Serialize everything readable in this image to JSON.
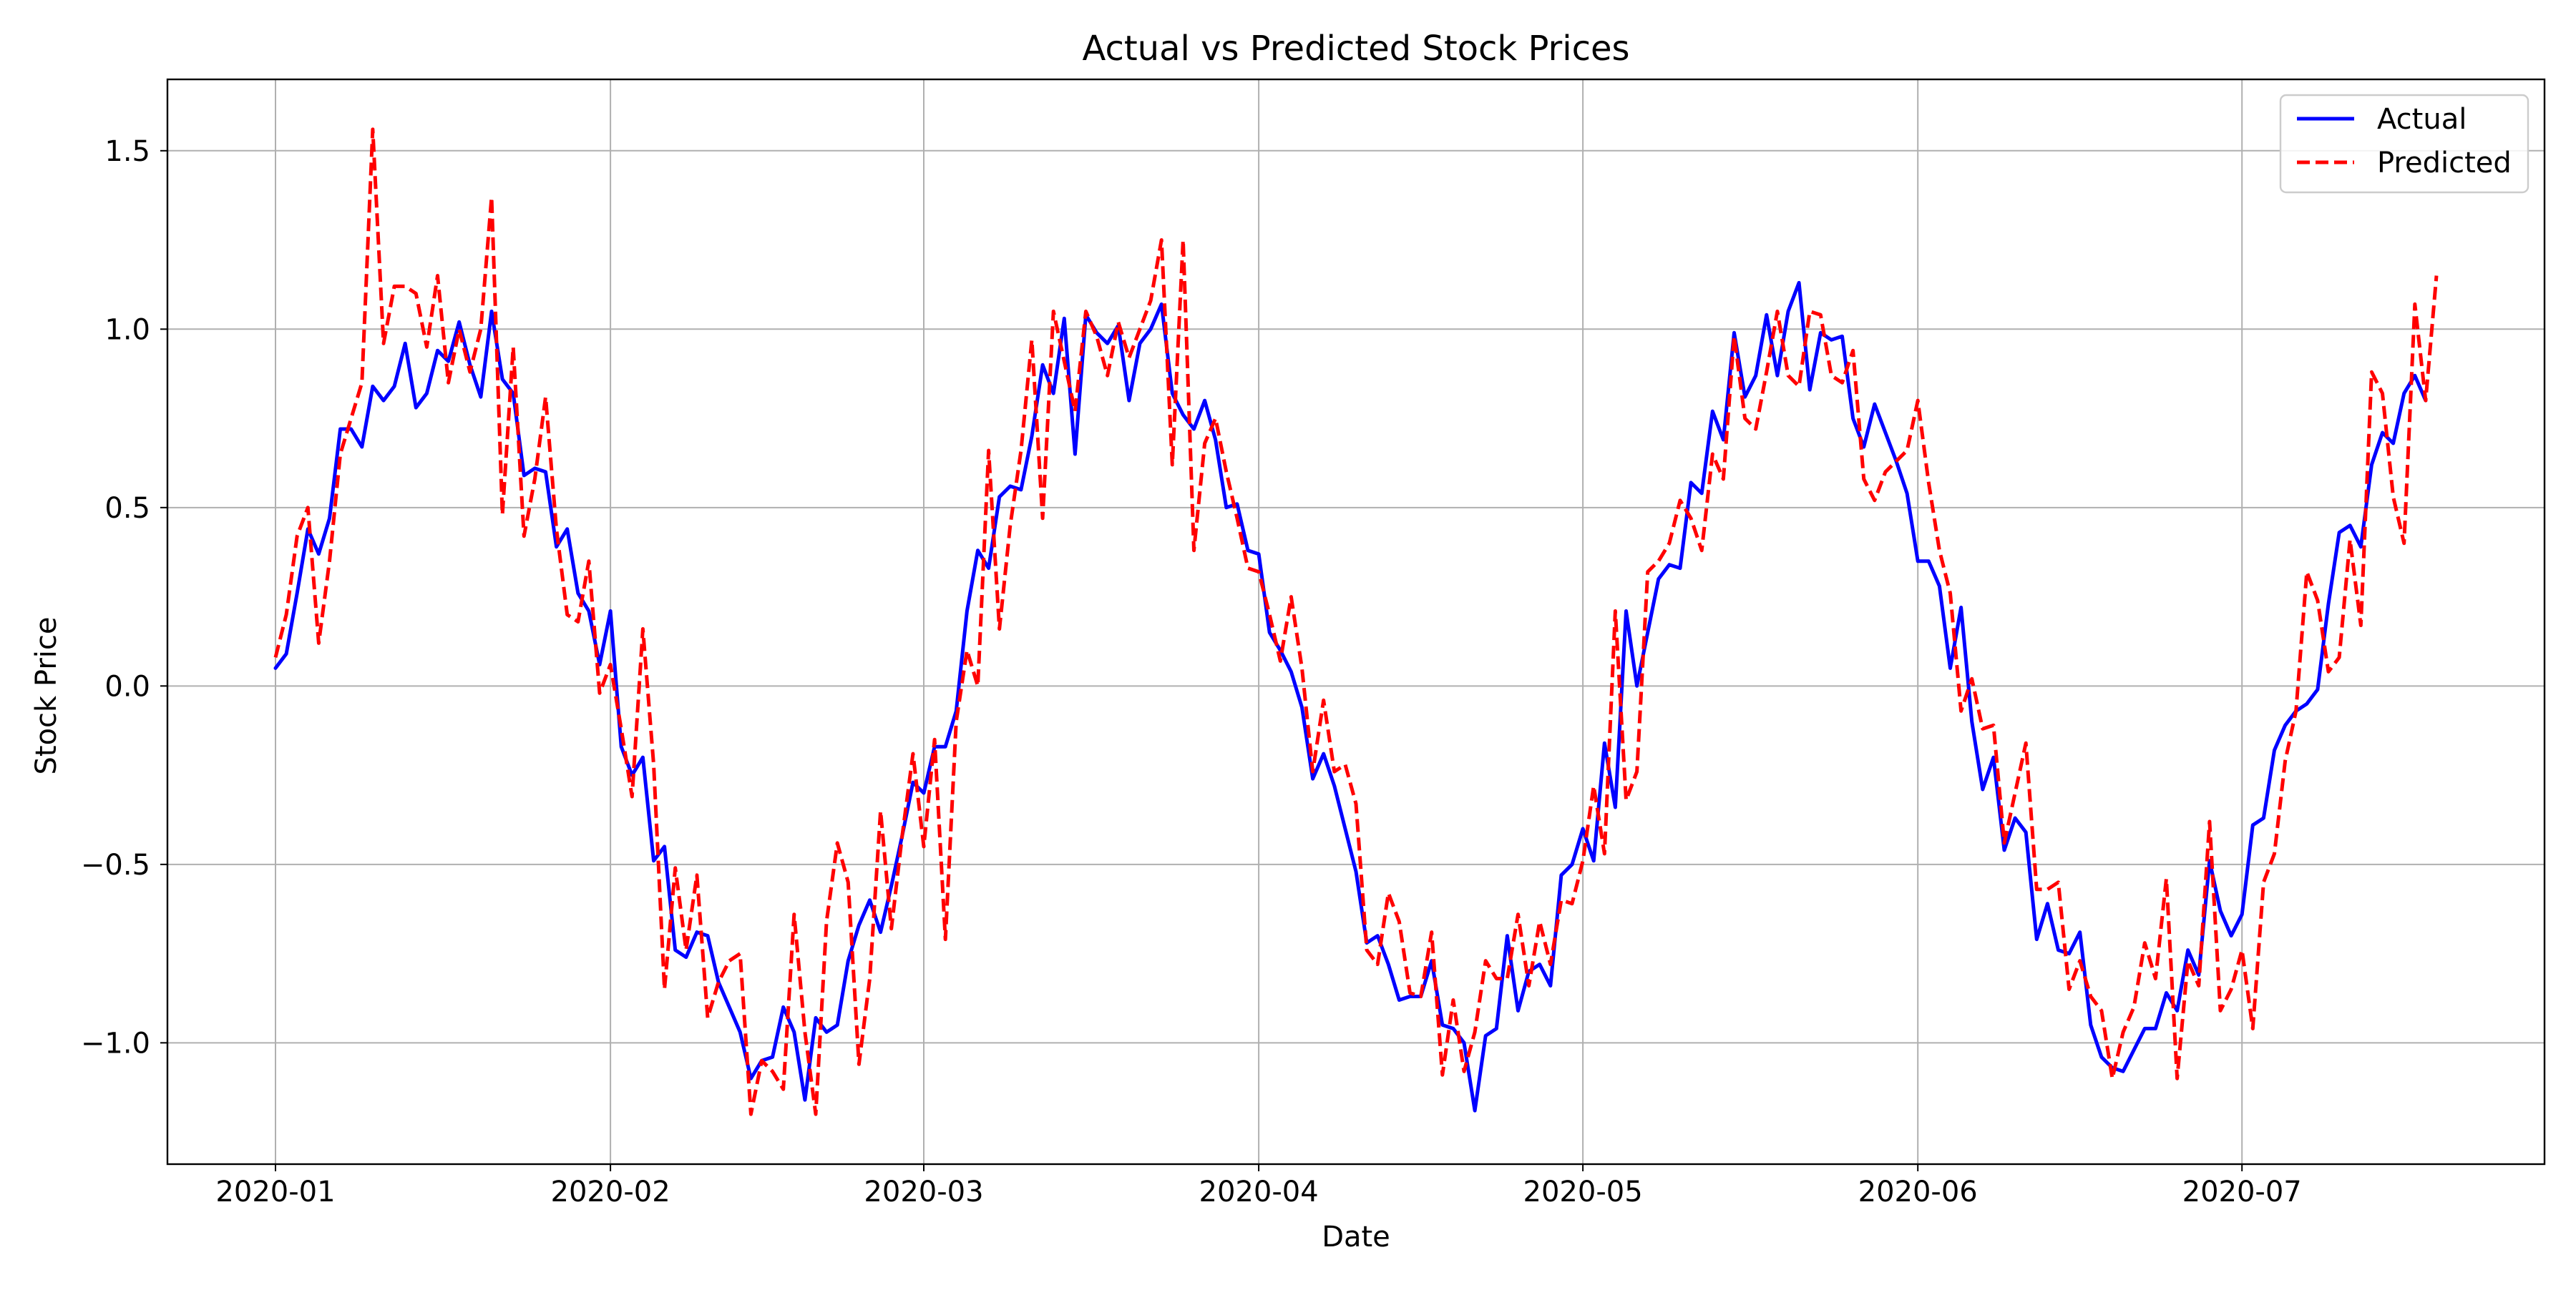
{
  "chart_data": {
    "type": "line",
    "title": "Actual vs Predicted Stock Prices",
    "xlabel": "Date",
    "ylabel": "Stock Price",
    "x_start": "2020-01-01",
    "x_end": "2020-07-19",
    "xlim": [
      "2019-12-22",
      "2020-07-29"
    ],
    "ylim": [
      -1.34,
      1.7
    ],
    "x_ticks": [
      "2020-01-01",
      "2020-02-01",
      "2020-03-01",
      "2020-04-01",
      "2020-05-01",
      "2020-06-01",
      "2020-07-01"
    ],
    "x_tick_labels": [
      "2020-01",
      "2020-02",
      "2020-03",
      "2020-04",
      "2020-05",
      "2020-06",
      "2020-07"
    ],
    "y_ticks": [
      -1.0,
      -0.5,
      0.0,
      0.5,
      1.0,
      1.5
    ],
    "y_tick_labels": [
      "−1.0",
      "−0.5",
      "0.0",
      "0.5",
      "1.0",
      "1.5"
    ],
    "grid": true,
    "legend_position": "top-right",
    "series": [
      {
        "name": "Actual",
        "color": "#0000ff",
        "style": "solid",
        "values": [
          0.05,
          0.09,
          0.26,
          0.44,
          0.37,
          0.47,
          0.72,
          0.72,
          0.67,
          0.84,
          0.8,
          0.84,
          0.96,
          0.78,
          0.82,
          0.94,
          0.91,
          1.02,
          0.9,
          0.81,
          1.05,
          0.86,
          0.82,
          0.59,
          0.61,
          0.6,
          0.39,
          0.44,
          0.26,
          0.21,
          0.06,
          0.21,
          -0.17,
          -0.25,
          -0.2,
          -0.49,
          -0.45,
          -0.74,
          -0.76,
          -0.69,
          -0.7,
          -0.83,
          -0.9,
          -0.97,
          -1.1,
          -1.05,
          -1.04,
          -0.9,
          -0.97,
          -1.16,
          -0.93,
          -0.97,
          -0.95,
          -0.77,
          -0.67,
          -0.6,
          -0.69,
          -0.56,
          -0.42,
          -0.27,
          -0.3,
          -0.17,
          -0.17,
          -0.07,
          0.21,
          0.38,
          0.33,
          0.53,
          0.56,
          0.55,
          0.7,
          0.9,
          0.82,
          1.03,
          0.65,
          1.04,
          0.99,
          0.96,
          1.01,
          0.8,
          0.96,
          1.0,
          1.07,
          0.82,
          0.76,
          0.72,
          0.8,
          0.69,
          0.5,
          0.51,
          0.38,
          0.37,
          0.15,
          0.1,
          0.04,
          -0.06,
          -0.26,
          -0.19,
          -0.28,
          -0.4,
          -0.52,
          -0.72,
          -0.7,
          -0.78,
          -0.88,
          -0.87,
          -0.87,
          -0.77,
          -0.95,
          -0.96,
          -1.0,
          -1.19,
          -0.98,
          -0.96,
          -0.7,
          -0.91,
          -0.8,
          -0.78,
          -0.84,
          -0.53,
          -0.5,
          -0.4,
          -0.49,
          -0.16,
          -0.34,
          0.21,
          0.0,
          0.15,
          0.3,
          0.34,
          0.33,
          0.57,
          0.54,
          0.77,
          0.69,
          0.99,
          0.81,
          0.87,
          1.04,
          0.87,
          1.05,
          1.13,
          0.83,
          0.99,
          0.97,
          0.98,
          0.75,
          0.67,
          0.79,
          0.71,
          0.63,
          0.54,
          0.35,
          0.35,
          0.28,
          0.05,
          0.22,
          -0.1,
          -0.29,
          -0.2,
          -0.46,
          -0.37,
          -0.41,
          -0.71,
          -0.61,
          -0.74,
          -0.75,
          -0.69,
          -0.95,
          -1.04,
          -1.07,
          -1.08,
          -1.02,
          -0.96,
          -0.96,
          -0.86,
          -0.91,
          -0.74,
          -0.81,
          -0.49,
          -0.63,
          -0.7,
          -0.64,
          -0.39,
          -0.37,
          -0.18,
          -0.11,
          -0.07,
          -0.05,
          -0.01,
          0.23,
          0.43,
          0.45,
          0.39,
          0.62,
          0.71,
          0.68,
          0.82,
          0.87,
          0.8
        ]
      },
      {
        "name": "Predicted",
        "color": "#ff0000",
        "style": "dashed",
        "values": [
          0.08,
          0.2,
          0.42,
          0.5,
          0.12,
          0.35,
          0.65,
          0.75,
          0.85,
          1.56,
          0.96,
          1.12,
          1.12,
          1.1,
          0.95,
          1.15,
          0.85,
          1.0,
          0.88,
          1.0,
          1.37,
          0.48,
          0.95,
          0.42,
          0.58,
          0.81,
          0.44,
          0.2,
          0.18,
          0.35,
          -0.02,
          0.06,
          -0.12,
          -0.31,
          0.16,
          -0.22,
          -0.85,
          -0.51,
          -0.74,
          -0.53,
          -0.93,
          -0.83,
          -0.77,
          -0.75,
          -1.2,
          -1.05,
          -1.08,
          -1.13,
          -0.64,
          -0.97,
          -1.2,
          -0.66,
          -0.44,
          -0.55,
          -1.06,
          -0.82,
          -0.35,
          -0.68,
          -0.42,
          -0.19,
          -0.45,
          -0.15,
          -0.71,
          -0.1,
          0.1,
          0.0,
          0.66,
          0.16,
          0.45,
          0.66,
          0.97,
          0.47,
          1.05,
          0.91,
          0.77,
          1.05,
          0.98,
          0.87,
          1.02,
          0.92,
          1.0,
          1.08,
          1.25,
          0.62,
          1.25,
          0.38,
          0.68,
          0.75,
          0.6,
          0.47,
          0.33,
          0.32,
          0.2,
          0.07,
          0.25,
          0.05,
          -0.24,
          -0.04,
          -0.24,
          -0.22,
          -0.33,
          -0.74,
          -0.78,
          -0.58,
          -0.66,
          -0.86,
          -0.87,
          -0.69,
          -1.09,
          -0.88,
          -1.08,
          -0.97,
          -0.77,
          -0.82,
          -0.82,
          -0.64,
          -0.84,
          -0.66,
          -0.78,
          -0.6,
          -0.61,
          -0.49,
          -0.28,
          -0.47,
          0.21,
          -0.32,
          -0.24,
          0.32,
          0.35,
          0.4,
          0.52,
          0.47,
          0.38,
          0.65,
          0.58,
          0.98,
          0.75,
          0.72,
          0.88,
          1.05,
          0.87,
          0.84,
          1.05,
          1.04,
          0.87,
          0.85,
          0.94,
          0.58,
          0.52,
          0.6,
          0.63,
          0.66,
          0.8,
          0.57,
          0.38,
          0.26,
          -0.07,
          0.02,
          -0.12,
          -0.11,
          -0.44,
          -0.3,
          -0.16,
          -0.57,
          -0.57,
          -0.55,
          -0.85,
          -0.77,
          -0.87,
          -0.91,
          -1.1,
          -0.97,
          -0.9,
          -0.72,
          -0.82,
          -0.54,
          -1.1,
          -0.77,
          -0.84,
          -0.38,
          -0.91,
          -0.85,
          -0.74,
          -0.96,
          -0.55,
          -0.47,
          -0.21,
          -0.07,
          0.32,
          0.24,
          0.04,
          0.08,
          0.41,
          0.17,
          0.88,
          0.82,
          0.53,
          0.4,
          1.07,
          0.8,
          1.15
        ]
      }
    ]
  }
}
